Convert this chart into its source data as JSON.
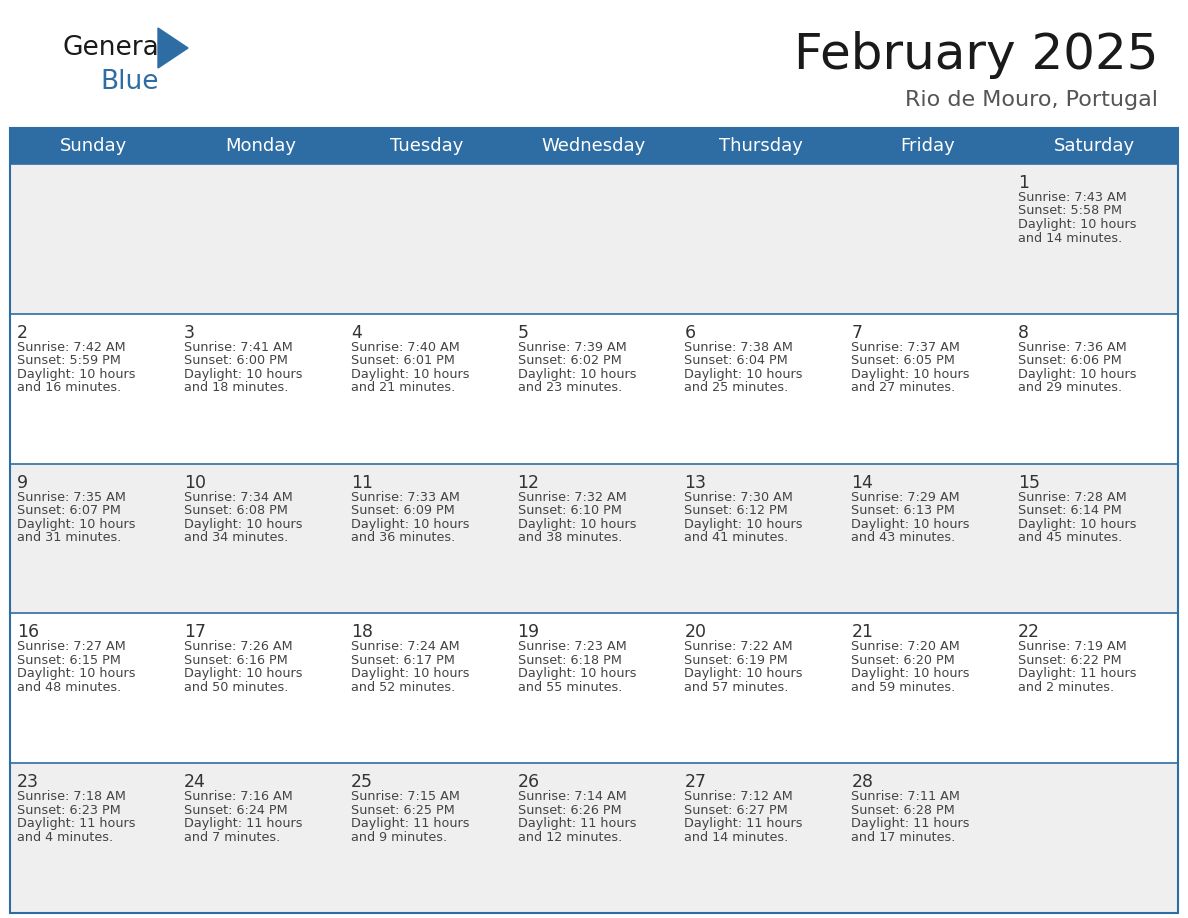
{
  "title": "February 2025",
  "subtitle": "Rio de Mouro, Portugal",
  "header_bg": "#2E6DA4",
  "header_text_color": "#FFFFFF",
  "weekdays": [
    "Sunday",
    "Monday",
    "Tuesday",
    "Wednesday",
    "Thursday",
    "Friday",
    "Saturday"
  ],
  "row_bg_even": "#EFEFEF",
  "row_bg_odd": "#FFFFFF",
  "border_color": "#2E6DA4",
  "day_number_color": "#333333",
  "info_text_color": "#444444",
  "calendar": [
    [
      null,
      null,
      null,
      null,
      null,
      null,
      {
        "day": "1",
        "sunrise": "7:43 AM",
        "sunset": "5:58 PM",
        "daylight1": "10 hours",
        "daylight2": "and 14 minutes."
      }
    ],
    [
      {
        "day": "2",
        "sunrise": "7:42 AM",
        "sunset": "5:59 PM",
        "daylight1": "10 hours",
        "daylight2": "and 16 minutes."
      },
      {
        "day": "3",
        "sunrise": "7:41 AM",
        "sunset": "6:00 PM",
        "daylight1": "10 hours",
        "daylight2": "and 18 minutes."
      },
      {
        "day": "4",
        "sunrise": "7:40 AM",
        "sunset": "6:01 PM",
        "daylight1": "10 hours",
        "daylight2": "and 21 minutes."
      },
      {
        "day": "5",
        "sunrise": "7:39 AM",
        "sunset": "6:02 PM",
        "daylight1": "10 hours",
        "daylight2": "and 23 minutes."
      },
      {
        "day": "6",
        "sunrise": "7:38 AM",
        "sunset": "6:04 PM",
        "daylight1": "10 hours",
        "daylight2": "and 25 minutes."
      },
      {
        "day": "7",
        "sunrise": "7:37 AM",
        "sunset": "6:05 PM",
        "daylight1": "10 hours",
        "daylight2": "and 27 minutes."
      },
      {
        "day": "8",
        "sunrise": "7:36 AM",
        "sunset": "6:06 PM",
        "daylight1": "10 hours",
        "daylight2": "and 29 minutes."
      }
    ],
    [
      {
        "day": "9",
        "sunrise": "7:35 AM",
        "sunset": "6:07 PM",
        "daylight1": "10 hours",
        "daylight2": "and 31 minutes."
      },
      {
        "day": "10",
        "sunrise": "7:34 AM",
        "sunset": "6:08 PM",
        "daylight1": "10 hours",
        "daylight2": "and 34 minutes."
      },
      {
        "day": "11",
        "sunrise": "7:33 AM",
        "sunset": "6:09 PM",
        "daylight1": "10 hours",
        "daylight2": "and 36 minutes."
      },
      {
        "day": "12",
        "sunrise": "7:32 AM",
        "sunset": "6:10 PM",
        "daylight1": "10 hours",
        "daylight2": "and 38 minutes."
      },
      {
        "day": "13",
        "sunrise": "7:30 AM",
        "sunset": "6:12 PM",
        "daylight1": "10 hours",
        "daylight2": "and 41 minutes."
      },
      {
        "day": "14",
        "sunrise": "7:29 AM",
        "sunset": "6:13 PM",
        "daylight1": "10 hours",
        "daylight2": "and 43 minutes."
      },
      {
        "day": "15",
        "sunrise": "7:28 AM",
        "sunset": "6:14 PM",
        "daylight1": "10 hours",
        "daylight2": "and 45 minutes."
      }
    ],
    [
      {
        "day": "16",
        "sunrise": "7:27 AM",
        "sunset": "6:15 PM",
        "daylight1": "10 hours",
        "daylight2": "and 48 minutes."
      },
      {
        "day": "17",
        "sunrise": "7:26 AM",
        "sunset": "6:16 PM",
        "daylight1": "10 hours",
        "daylight2": "and 50 minutes."
      },
      {
        "day": "18",
        "sunrise": "7:24 AM",
        "sunset": "6:17 PM",
        "daylight1": "10 hours",
        "daylight2": "and 52 minutes."
      },
      {
        "day": "19",
        "sunrise": "7:23 AM",
        "sunset": "6:18 PM",
        "daylight1": "10 hours",
        "daylight2": "and 55 minutes."
      },
      {
        "day": "20",
        "sunrise": "7:22 AM",
        "sunset": "6:19 PM",
        "daylight1": "10 hours",
        "daylight2": "and 57 minutes."
      },
      {
        "day": "21",
        "sunrise": "7:20 AM",
        "sunset": "6:20 PM",
        "daylight1": "10 hours",
        "daylight2": "and 59 minutes."
      },
      {
        "day": "22",
        "sunrise": "7:19 AM",
        "sunset": "6:22 PM",
        "daylight1": "11 hours",
        "daylight2": "and 2 minutes."
      }
    ],
    [
      {
        "day": "23",
        "sunrise": "7:18 AM",
        "sunset": "6:23 PM",
        "daylight1": "11 hours",
        "daylight2": "and 4 minutes."
      },
      {
        "day": "24",
        "sunrise": "7:16 AM",
        "sunset": "6:24 PM",
        "daylight1": "11 hours",
        "daylight2": "and 7 minutes."
      },
      {
        "day": "25",
        "sunrise": "7:15 AM",
        "sunset": "6:25 PM",
        "daylight1": "11 hours",
        "daylight2": "and 9 minutes."
      },
      {
        "day": "26",
        "sunrise": "7:14 AM",
        "sunset": "6:26 PM",
        "daylight1": "11 hours",
        "daylight2": "and 12 minutes."
      },
      {
        "day": "27",
        "sunrise": "7:12 AM",
        "sunset": "6:27 PM",
        "daylight1": "11 hours",
        "daylight2": "and 14 minutes."
      },
      {
        "day": "28",
        "sunrise": "7:11 AM",
        "sunset": "6:28 PM",
        "daylight1": "11 hours",
        "daylight2": "and 17 minutes."
      },
      null
    ]
  ]
}
